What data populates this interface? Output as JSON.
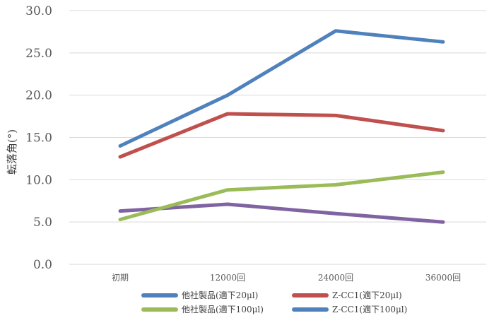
{
  "chart_data": {
    "type": "line",
    "categories": [
      "初期",
      "12000回",
      "24000回",
      "36000回"
    ],
    "ylabel": "転落角(°)",
    "ylim": [
      0,
      30
    ],
    "yticks": [
      "0.0",
      "5.0",
      "10.0",
      "15.0",
      "20.0",
      "25.0",
      "30.0"
    ],
    "grid": true,
    "legend_position": "bottom",
    "series": [
      {
        "name": "他社製品(適下20μl)",
        "color": "#4f81bd",
        "values": [
          14.0,
          20.0,
          27.6,
          26.3
        ]
      },
      {
        "name": "Z-CC1(適下20μl)",
        "color": "#c0504d",
        "values": [
          12.7,
          17.8,
          17.6,
          15.8
        ]
      },
      {
        "name": "他社製品(適下100μl)",
        "color": "#9bbb59",
        "values": [
          5.3,
          8.8,
          9.4,
          10.9
        ]
      },
      {
        "name": "Z-CC1(適下100μl)",
        "color": "#4f81bd",
        "values": [
          null,
          null,
          null,
          null
        ]
      },
      {
        "name": "",
        "color": "#8064a2",
        "values": [
          6.3,
          7.1,
          6.0,
          5.0
        ]
      }
    ]
  }
}
